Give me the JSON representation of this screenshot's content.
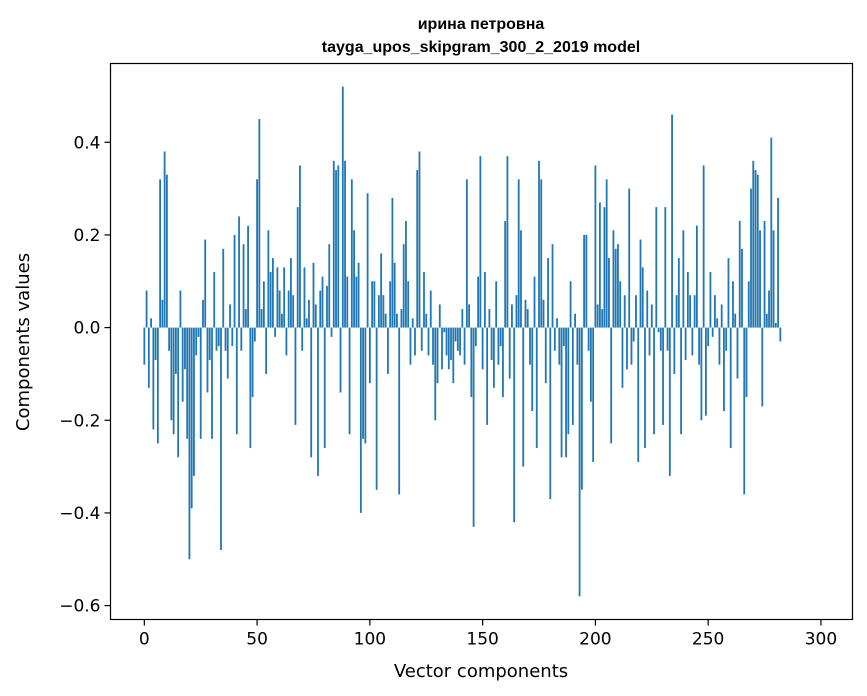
{
  "chart_data": {
    "type": "bar",
    "title": "ирина петровна",
    "subtitle": "tayga_upos_skipgram_300_2_2019 model",
    "xlabel": "Vector components",
    "ylabel": "Components values",
    "xlim": [
      -15,
      314
    ],
    "ylim": [
      -0.63,
      0.57
    ],
    "xticks": [
      0,
      50,
      100,
      150,
      200,
      250,
      300
    ],
    "yticks": [
      -0.6,
      -0.4,
      -0.2,
      0.0,
      0.2,
      0.4
    ],
    "ytick_labels": [
      "−0.6",
      "−0.4",
      "−0.2",
      "0.0",
      "0.2",
      "0.4"
    ],
    "grid": false,
    "bar_color": "#1f77b4",
    "values": [
      -0.08,
      0.08,
      -0.13,
      0.02,
      -0.22,
      -0.07,
      -0.25,
      0.32,
      0.06,
      0.38,
      0.33,
      -0.05,
      -0.2,
      -0.23,
      -0.1,
      -0.28,
      0.08,
      -0.16,
      -0.09,
      -0.24,
      -0.5,
      -0.39,
      -0.32,
      -0.06,
      -0.02,
      -0.24,
      0.06,
      0.19,
      -0.14,
      -0.07,
      -0.24,
      0.12,
      -0.05,
      -0.04,
      -0.48,
      0.17,
      -0.05,
      -0.11,
      0.05,
      -0.04,
      0.2,
      -0.23,
      0.24,
      -0.05,
      0.18,
      0.04,
      0.22,
      -0.26,
      -0.15,
      -0.03,
      0.32,
      0.45,
      0.04,
      0.1,
      -0.1,
      0.21,
      0.12,
      0.15,
      -0.02,
      0.13,
      0.08,
      0.03,
      0.13,
      -0.06,
      0.08,
      0.15,
      0.07,
      -0.21,
      0.26,
      0.35,
      -0.05,
      0.13,
      0.02,
      0.06,
      -0.28,
      0.14,
      0.05,
      -0.32,
      0.08,
      0.11,
      -0.26,
      0.09,
      0.18,
      -0.02,
      0.36,
      0.34,
      0.35,
      -0.14,
      0.52,
      0.36,
      0.11,
      -0.23,
      0.32,
      0.21,
      0.11,
      0.14,
      -0.4,
      -0.24,
      -0.25,
      0.29,
      -0.12,
      0.1,
      0.1,
      -0.35,
      0.07,
      0.16,
      0.07,
      0.03,
      -0.1,
      0.1,
      0.28,
      0.14,
      0.03,
      -0.36,
      0.04,
      0.18,
      0.23,
      0.1,
      -0.08,
      0.02,
      -0.06,
      0.34,
      0.38,
      -0.05,
      0.12,
      0.03,
      -0.06,
      0.08,
      -0.08,
      -0.2,
      -0.12,
      0.05,
      -0.09,
      -0.01,
      -0.06,
      -0.09,
      -0.07,
      -0.12,
      -0.03,
      -0.05,
      -0.06,
      0.04,
      -0.08,
      0.32,
      0.05,
      -0.15,
      -0.43,
      -0.04,
      0.11,
      0.37,
      -0.09,
      0.12,
      -0.21,
      0.04,
      -0.07,
      -0.13,
      0.1,
      -0.08,
      -0.04,
      -0.15,
      0.23,
      0.37,
      -0.11,
      0.05,
      -0.42,
      0.07,
      0.32,
      0.21,
      -0.3,
      0.06,
      0.04,
      -0.08,
      -0.18,
      0.11,
      -0.26,
      0.36,
      0.32,
      0.06,
      -0.12,
      0.15,
      -0.37,
      0.18,
      -0.05,
      0.02,
      -0.08,
      -0.28,
      -0.04,
      -0.28,
      -0.23,
      0.1,
      -0.21,
      0.03,
      -0.08,
      -0.58,
      -0.35,
      0.2,
      0.2,
      -0.05,
      -0.16,
      -0.29,
      0.35,
      0.05,
      0.27,
      0.04,
      0.26,
      0.32,
      0.15,
      -0.25,
      0.21,
      0.17,
      0.18,
      0.1,
      -0.13,
      0.07,
      -0.09,
      0.3,
      -0.08,
      -0.03,
      0.07,
      -0.29,
      0.19,
      0.13,
      -0.26,
      0.08,
      -0.06,
      0.05,
      -0.23,
      0.26,
      -0.01,
      -0.05,
      -0.21,
      0.26,
      -0.05,
      -0.32,
      0.46,
      -0.1,
      0.07,
      0.15,
      -0.23,
      0.21,
      -0.07,
      0.12,
      0.07,
      -0.06,
      0.07,
      0.22,
      -0.08,
      -0.2,
      0.35,
      -0.19,
      -0.04,
      0.12,
      -0.02,
      0.07,
      0.02,
      -0.08,
      0.05,
      -0.18,
      -0.05,
      0.15,
      -0.26,
      0.1,
      0.03,
      -0.11,
      0.23,
      0.17,
      -0.36,
      -0.15,
      0.1,
      0.3,
      0.36,
      0.34,
      0.33,
      0.21,
      -0.17,
      0.23,
      0.03,
      0.08,
      0.41,
      0.21,
      0.01,
      0.28,
      -0.03
    ]
  }
}
